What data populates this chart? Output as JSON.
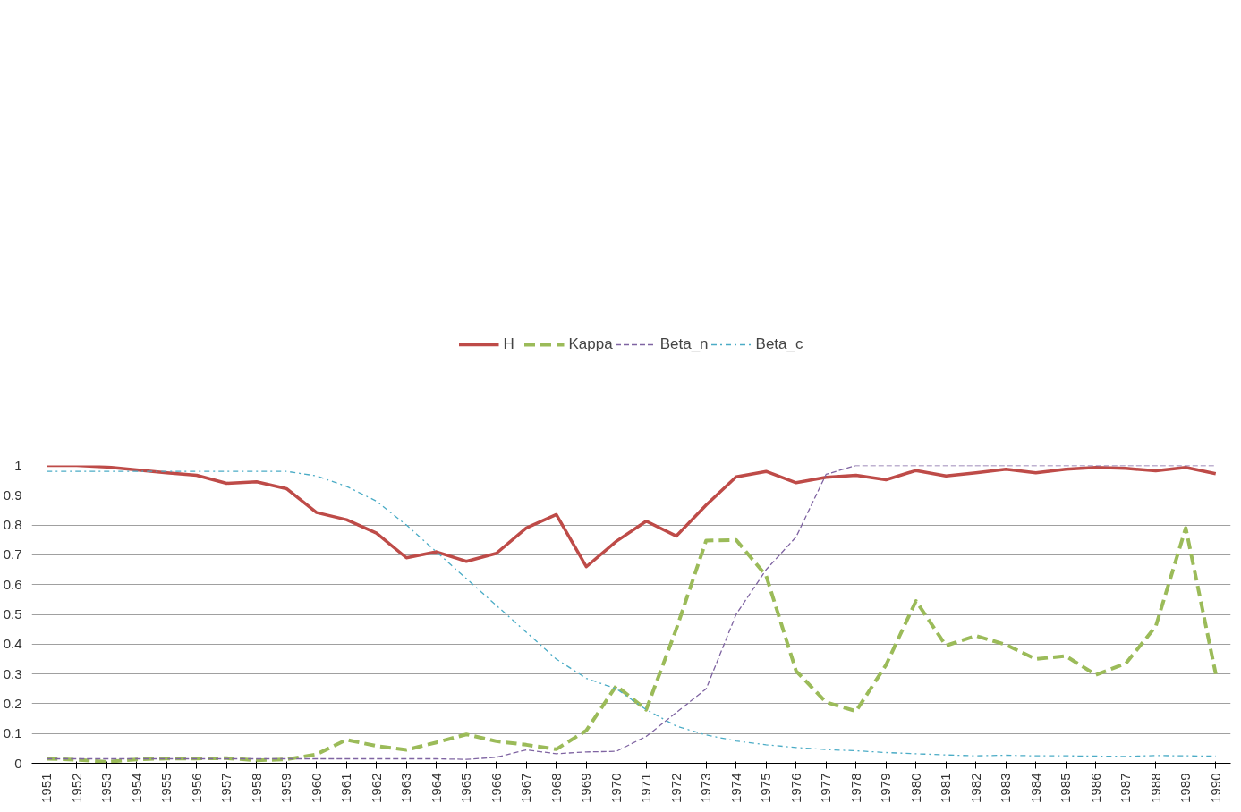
{
  "chart_data": {
    "type": "line",
    "categories": [
      "1951",
      "1952",
      "1953",
      "1954",
      "1955",
      "1956",
      "1957",
      "1958",
      "1959",
      "1960",
      "1961",
      "1962",
      "1963",
      "1964",
      "1965",
      "1966",
      "1967",
      "1968",
      "1969",
      "1970",
      "1971",
      "1972",
      "1973",
      "1974",
      "1975",
      "1976",
      "1977",
      "1978",
      "1979",
      "1980",
      "1981",
      "1982",
      "1983",
      "1984",
      "1985",
      "1986",
      "1987",
      "1988",
      "1989",
      "1990"
    ],
    "series": [
      {
        "name": "H",
        "color": "#be4b48",
        "line_style": "solid",
        "values": [
          1.0,
          1.0,
          0.995,
          0.985,
          0.975,
          0.967,
          0.94,
          0.945,
          0.922,
          0.842,
          0.818,
          0.773,
          0.69,
          0.71,
          0.678,
          0.705,
          0.79,
          0.835,
          0.66,
          0.745,
          0.813,
          0.763,
          0.867,
          0.962,
          0.98,
          0.942,
          0.96,
          0.967,
          0.952,
          0.983,
          0.965,
          0.975,
          0.987,
          0.975,
          0.987,
          0.993,
          0.99,
          0.982,
          0.993,
          0.972
        ]
      },
      {
        "name": "Kappa",
        "color": "#9bbb59",
        "line_style": "dashed",
        "values": [
          0.015,
          0.012,
          0.005,
          0.013,
          0.016,
          0.016,
          0.017,
          0.01,
          0.013,
          0.03,
          0.079,
          0.058,
          0.045,
          0.07,
          0.097,
          0.074,
          0.062,
          0.047,
          0.11,
          0.26,
          0.18,
          0.45,
          0.748,
          0.75,
          0.63,
          0.31,
          0.205,
          0.175,
          0.33,
          0.545,
          0.395,
          0.428,
          0.398,
          0.35,
          0.36,
          0.297,
          0.335,
          0.46,
          0.79,
          0.3
        ]
      },
      {
        "name": "Beta_n",
        "color": "#7f64a2",
        "line_style": "dashed",
        "values": [
          0.015,
          0.015,
          0.015,
          0.015,
          0.015,
          0.015,
          0.015,
          0.015,
          0.015,
          0.015,
          0.015,
          0.015,
          0.015,
          0.015,
          0.013,
          0.02,
          0.045,
          0.032,
          0.038,
          0.04,
          0.09,
          0.17,
          0.25,
          0.5,
          0.65,
          0.76,
          0.97,
          1.0,
          1.0,
          1.0,
          1.0,
          1.0,
          1.0,
          1.0,
          1.0,
          1.0,
          1.0,
          1.0,
          1.0,
          1.0
        ]
      },
      {
        "name": "Beta_c",
        "color": "#4bacc6",
        "line_style": "dashdot",
        "values": [
          0.98,
          0.98,
          0.98,
          0.98,
          0.98,
          0.98,
          0.98,
          0.98,
          0.98,
          0.965,
          0.93,
          0.88,
          0.8,
          0.71,
          0.62,
          0.53,
          0.44,
          0.35,
          0.285,
          0.25,
          0.18,
          0.125,
          0.095,
          0.075,
          0.062,
          0.053,
          0.046,
          0.042,
          0.036,
          0.032,
          0.028,
          0.025,
          0.027,
          0.025,
          0.025,
          0.024,
          0.023,
          0.026,
          0.025,
          0.024
        ]
      }
    ],
    "ylim": [
      0,
      1
    ],
    "yticks": [
      0,
      0.1,
      0.2,
      0.3,
      0.4,
      0.5,
      0.6,
      0.7,
      0.8,
      0.9,
      1
    ],
    "grid": "y",
    "legend": "top"
  }
}
